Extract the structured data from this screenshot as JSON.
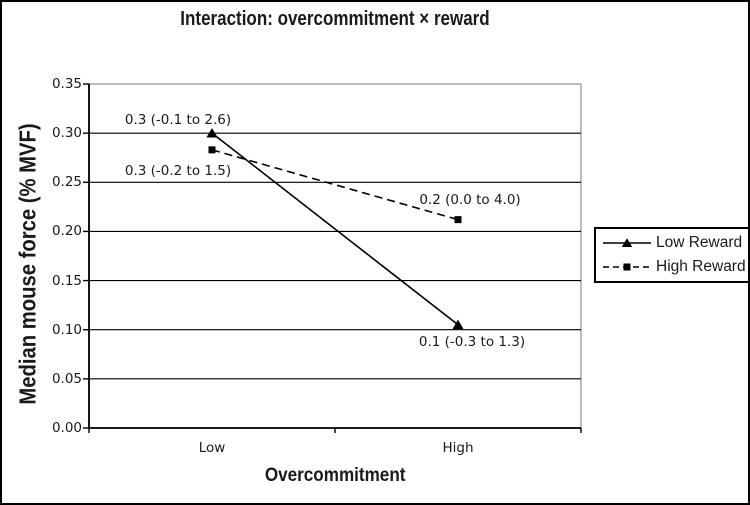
{
  "chart_data": {
    "type": "line",
    "title": "Interaction: overcommitment × reward",
    "xlabel": "Overcommitment",
    "ylabel": "Median mouse force (% MVF)",
    "categories": [
      "Low",
      "High"
    ],
    "series": [
      {
        "name": "Low Reward",
        "marker": "triangle",
        "line_style": "solid",
        "color": "#000000",
        "values": [
          0.3,
          0.105
        ],
        "point_labels": [
          "0.3 (-0.1 to 2.6)",
          "0.1 (-0.3 to 1.3)"
        ]
      },
      {
        "name": "High Reward",
        "marker": "square",
        "line_style": "dashed",
        "color": "#000000",
        "values": [
          0.283,
          0.212
        ],
        "point_labels": [
          "0.3 (-0.2 to 1.5)",
          "0.2 (0.0 to 4.0)"
        ]
      }
    ],
    "ylim": [
      0,
      0.35
    ],
    "ytick_step": 0.05,
    "ytick_labels": [
      "0.00",
      "0.05",
      "0.10",
      "0.15",
      "0.20",
      "0.25",
      "0.30",
      "0.35"
    ],
    "grid": true,
    "legend_position": "right"
  },
  "colors": {
    "series": "#000000",
    "plot_border": "#999999",
    "gridline": "#000000",
    "figure_border": "#000000",
    "background": "#ffffff"
  }
}
